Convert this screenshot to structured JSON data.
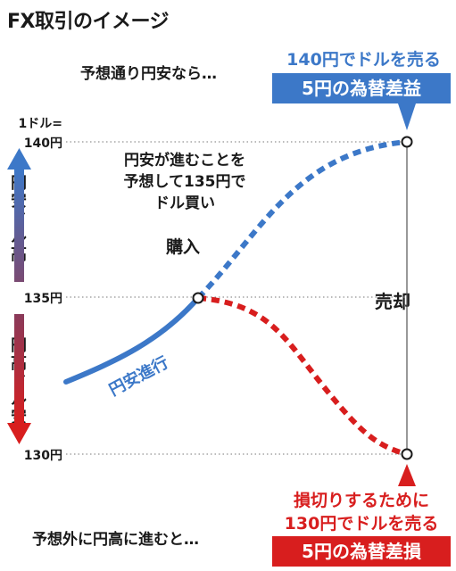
{
  "title": "FX取引のイメージ",
  "top_lead": "予想通り円安なら…",
  "top_sell": "140円でドルを売る",
  "top_result": "5円の為替差益",
  "axis_unit": "1ドル=",
  "y_ticks": [
    "140円",
    "135円",
    "130円"
  ],
  "up_label": "円安ドル高",
  "down_label": "円高ドル安",
  "buy_note": [
    "円安が進むことを",
    "予想して135円で",
    "ドル買い"
  ],
  "buy_label": "購入",
  "sell_label": "売却",
  "trend_label": "円安進行",
  "bottom_cut": "損切りするために",
  "bottom_sell": "130円でドルを売る",
  "bottom_lead": "予想外に円高に進むと…",
  "bottom_result": "5円の為替差損",
  "colors": {
    "blue": "#3c78c8",
    "red": "#d81e1e"
  }
}
